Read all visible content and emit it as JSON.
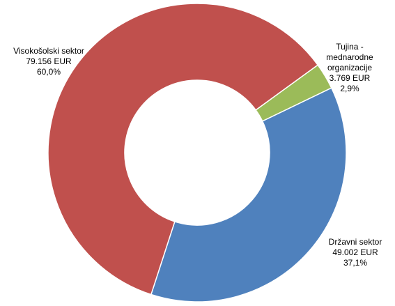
{
  "chart_data": {
    "type": "donut",
    "categories": [
      "Tujina - mednarodne organizacije",
      "Državni sektor",
      "Visokošolski sektor"
    ],
    "values": [
      3769,
      49002,
      79156
    ],
    "value_labels": [
      "3.769 EUR",
      "49.002 EUR",
      "79.156 EUR"
    ],
    "percent_labels": [
      "2,9%",
      "37,1%",
      "60,0%"
    ],
    "colors": [
      "#9bbb59",
      "#4f81bd",
      "#c0504d"
    ]
  }
}
